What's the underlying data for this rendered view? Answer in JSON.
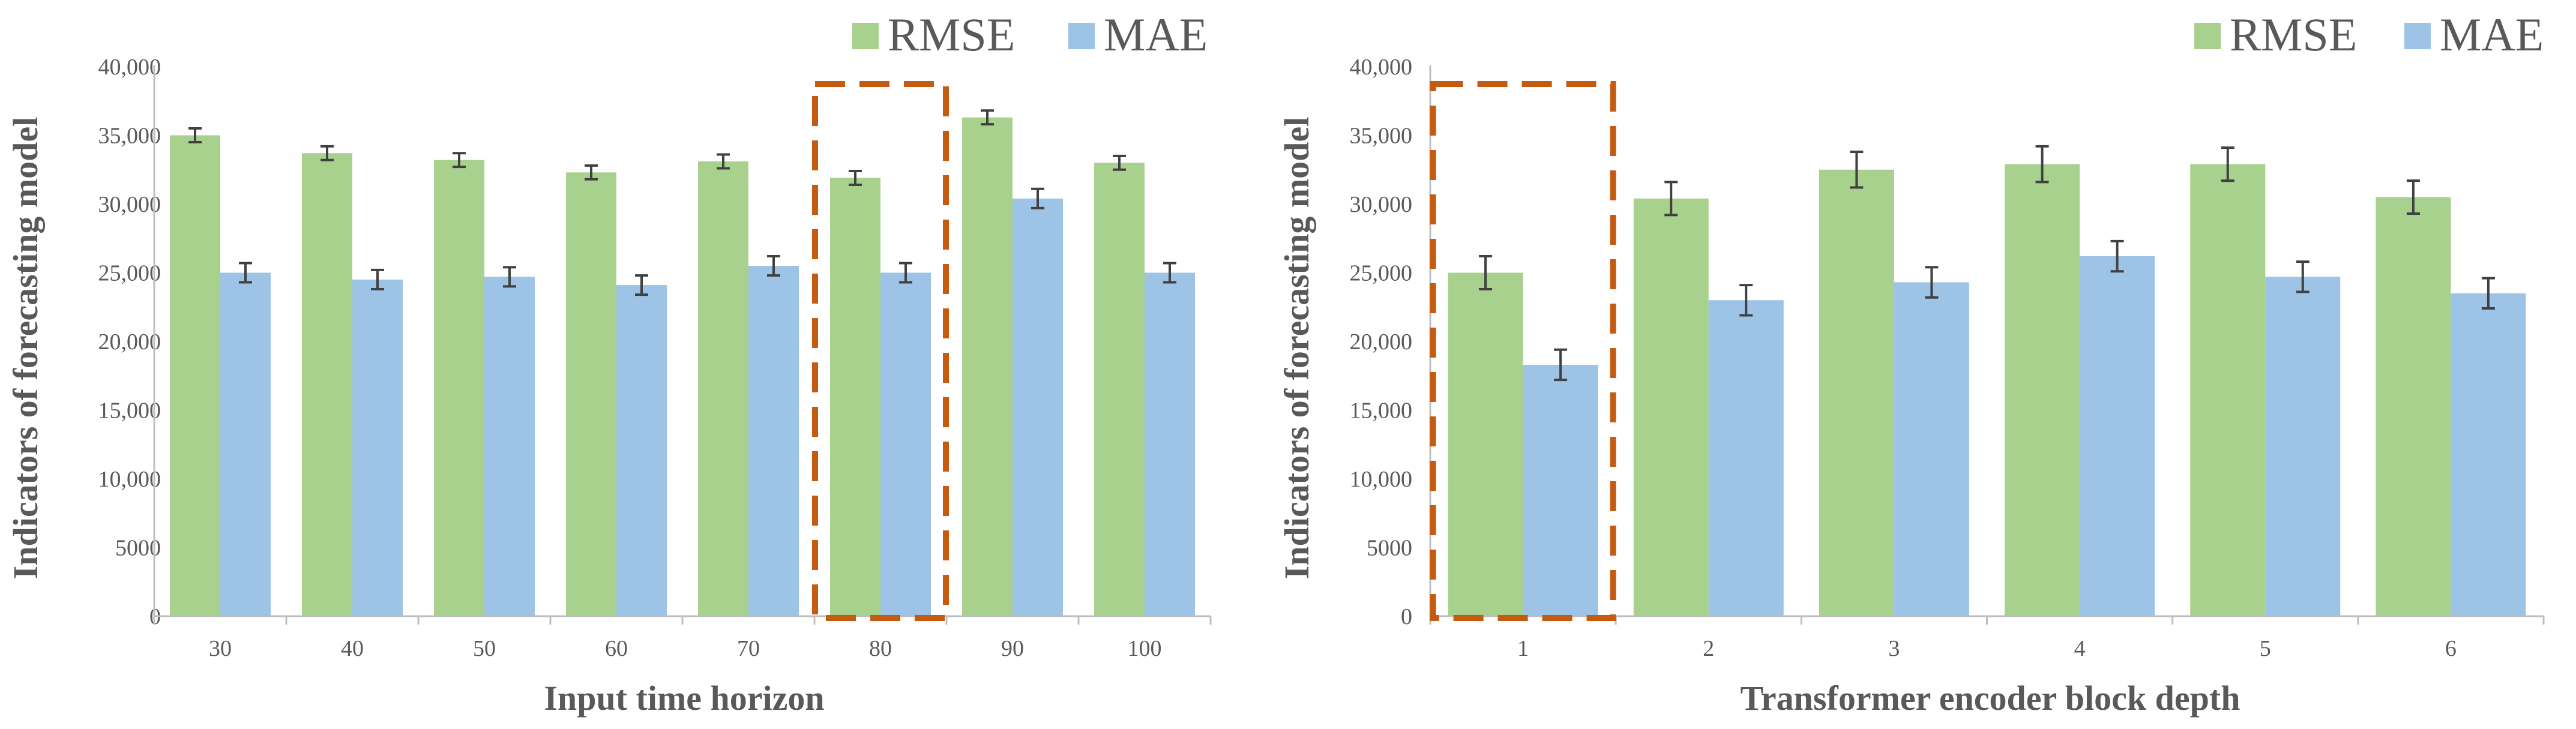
{
  "colors": {
    "rmse": "#a9d18e",
    "mae": "#9dc3e6",
    "highlight": "#c55a11",
    "axis": "#bfbfbf",
    "text": "#595959",
    "errorbar": "#404040"
  },
  "chart_data": [
    {
      "type": "bar",
      "xlabel": "Input time horizon",
      "ylabel": "Indicators of forecasting model",
      "categories": [
        "30",
        "40",
        "50",
        "60",
        "70",
        "80",
        "90",
        "100"
      ],
      "series": [
        {
          "name": "RMSE",
          "values": [
            35000,
            33700,
            33200,
            32300,
            33100,
            31900,
            36300,
            33000
          ],
          "error": [
            500,
            500,
            500,
            500,
            500,
            500,
            500,
            500
          ]
        },
        {
          "name": "MAE",
          "values": [
            25000,
            24500,
            24700,
            24100,
            25500,
            25000,
            30400,
            25000
          ],
          "error": [
            700,
            700,
            700,
            700,
            700,
            700,
            700,
            700
          ]
        }
      ],
      "ylim": [
        0,
        40000
      ],
      "yticks": [
        0,
        5000,
        10000,
        15000,
        20000,
        25000,
        30000,
        35000,
        40000
      ],
      "ytick_labels": [
        "0",
        "5000",
        "10,000",
        "15,000",
        "20,000",
        "25,000",
        "30,000",
        "35,000",
        "40,000"
      ],
      "highlight_category": "80",
      "legend": "top-right",
      "grid": false
    },
    {
      "type": "bar",
      "xlabel": "Transformer encoder block depth",
      "ylabel": "Indicators of forecasting model",
      "categories": [
        "1",
        "2",
        "3",
        "4",
        "5",
        "6"
      ],
      "series": [
        {
          "name": "RMSE",
          "values": [
            25000,
            30400,
            32500,
            32900,
            32900,
            30500
          ],
          "error": [
            1200,
            1200,
            1300,
            1300,
            1200,
            1200
          ]
        },
        {
          "name": "MAE",
          "values": [
            18300,
            23000,
            24300,
            26200,
            24700,
            23500
          ],
          "error": [
            1100,
            1100,
            1100,
            1100,
            1100,
            1100
          ]
        }
      ],
      "ylim": [
        0,
        40000
      ],
      "yticks": [
        0,
        5000,
        10000,
        15000,
        20000,
        25000,
        30000,
        35000,
        40000
      ],
      "ytick_labels": [
        "0",
        "5000",
        "10,000",
        "15,000",
        "20,000",
        "25,000",
        "30,000",
        "35,000",
        "40,000"
      ],
      "highlight_category": "1",
      "legend": "top-right",
      "grid": false
    }
  ]
}
